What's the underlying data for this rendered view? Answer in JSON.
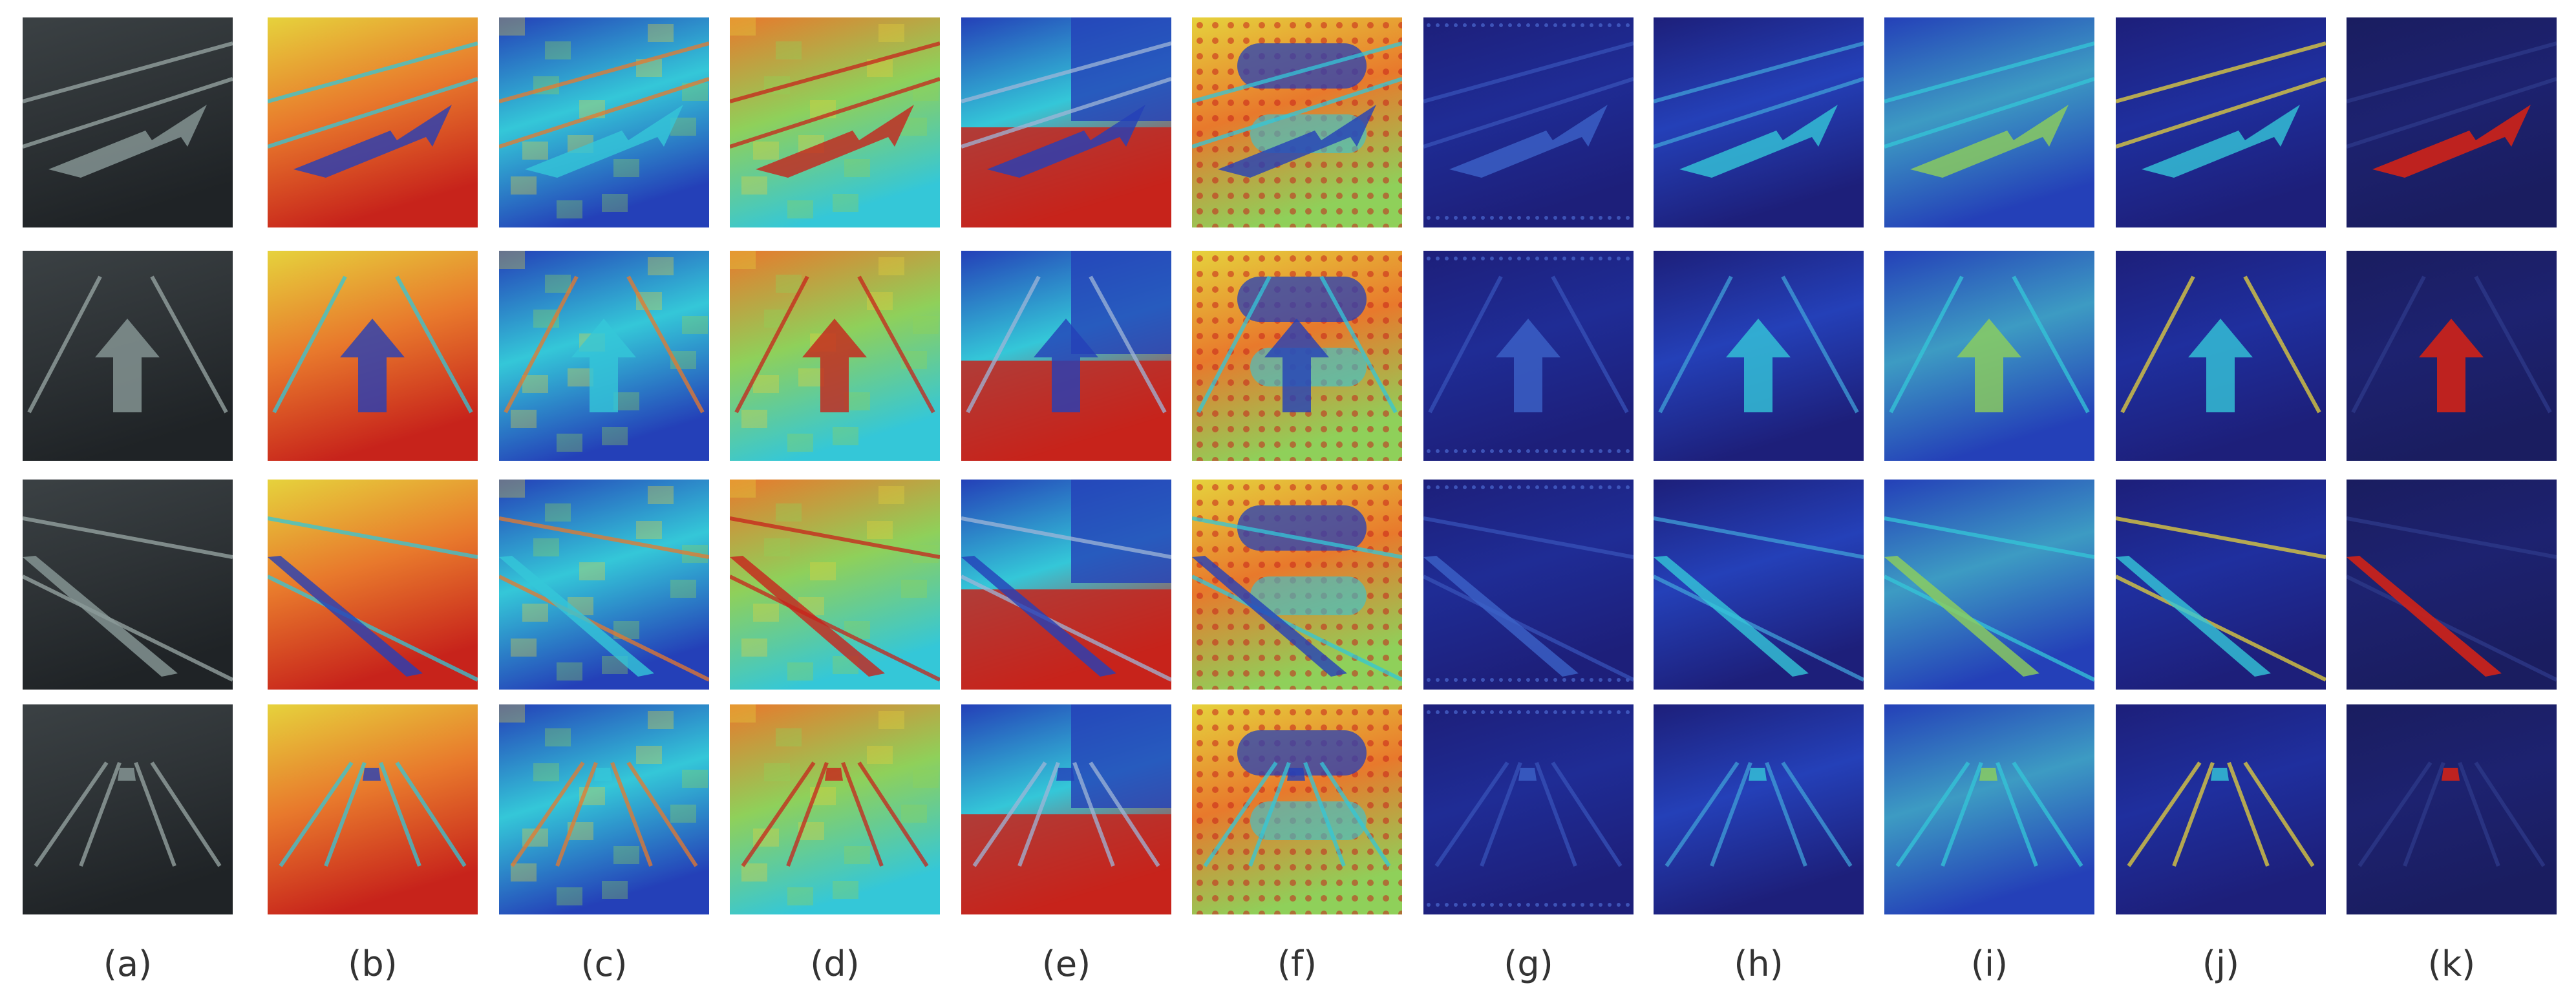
{
  "figure": {
    "columns": [
      {
        "key": "a",
        "label": "(a)",
        "style": "photo"
      },
      {
        "key": "b",
        "label": "(b)",
        "style": "hot"
      },
      {
        "key": "c",
        "label": "(c)",
        "style": "cool-mixed"
      },
      {
        "key": "d",
        "label": "(d)",
        "style": "warm-mixed"
      },
      {
        "key": "e",
        "label": "(e)",
        "style": "block"
      },
      {
        "key": "f",
        "label": "(f)",
        "style": "dotted"
      },
      {
        "key": "g",
        "label": "(g)",
        "style": "dark-blue"
      },
      {
        "key": "h",
        "label": "(h)",
        "style": "blue-soft"
      },
      {
        "key": "i",
        "label": "(i)",
        "style": "blue-green"
      },
      {
        "key": "j",
        "label": "(j)",
        "style": "blue-bright"
      },
      {
        "key": "k",
        "label": "(k)",
        "style": "mask"
      }
    ],
    "rows": [
      {
        "scene": "right-arrow"
      },
      {
        "scene": "straight-arrow"
      },
      {
        "scene": "diagonal-lane"
      },
      {
        "scene": "multi-lane"
      }
    ],
    "colors": {
      "photo_bg": "#2e3336",
      "marking": "#8a9a98",
      "deep_blue": "#1d1f7a",
      "mid_blue": "#2440b8",
      "cyan": "#34c7d8",
      "green": "#8fd05a",
      "yellow": "#e6d23c",
      "orange": "#e8792c",
      "red": "#c7231b"
    }
  }
}
